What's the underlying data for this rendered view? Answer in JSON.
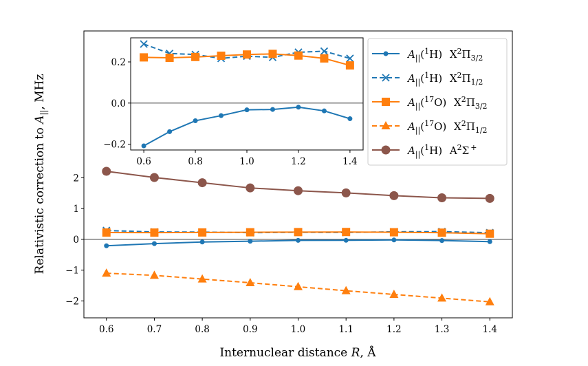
{
  "chart_data": [
    {
      "type": "line",
      "role": "main",
      "xlabel": {
        "text": "Internuclear distance ",
        "var": "R",
        "unit": ", Å"
      },
      "ylabel": {
        "text": "Relativistic correction to ",
        "var": "A",
        "sub": "||",
        "unit": ", MHz"
      },
      "xlim": [
        0.553,
        1.447
      ],
      "ylim": [
        -2.55,
        6.77
      ],
      "xticks": [
        "0.6",
        "0.7",
        "0.8",
        "0.9",
        "1.0",
        "1.1",
        "1.2",
        "1.3",
        "1.4"
      ],
      "yticks": [
        "−2",
        "−1",
        "0",
        "1",
        "2"
      ],
      "ytick_values": [
        -2,
        -1,
        0,
        1,
        2
      ],
      "zero_line": true,
      "x": [
        0.6,
        0.7,
        0.8,
        0.9,
        1.0,
        1.1,
        1.2,
        1.3,
        1.4
      ],
      "series": [
        {
          "name": "A||(1H) X2Π3/2",
          "color": "#1f77b4",
          "style": "solid",
          "marker": "dot",
          "values": [
            -0.208,
            -0.139,
            -0.086,
            -0.061,
            -0.033,
            -0.031,
            -0.02,
            -0.038,
            -0.076
          ]
        },
        {
          "name": "A||(1H) X2Π1/2",
          "color": "#1f77b4",
          "style": "dashed",
          "marker": "x",
          "values": [
            0.287,
            0.241,
            0.236,
            0.217,
            0.228,
            0.222,
            0.247,
            0.252,
            0.217
          ]
        },
        {
          "name": "A||(17O) X2Π3/2",
          "color": "#ff7f0e",
          "style": "solid",
          "marker": "square",
          "values": [
            0.222,
            0.22,
            0.224,
            0.23,
            0.236,
            0.239,
            0.231,
            0.217,
            0.183
          ]
        },
        {
          "name": "A||(17O) X2Π1/2",
          "color": "#ff7f0e",
          "style": "dashed",
          "marker": "triangle",
          "values": [
            -1.1,
            -1.17,
            -1.29,
            -1.41,
            -1.54,
            -1.67,
            -1.79,
            -1.91,
            -2.03
          ]
        },
        {
          "name": "A||(1H) A2Σ+",
          "color": "#8c564b",
          "style": "solid",
          "marker": "circle",
          "values": [
            2.21,
            2.01,
            1.84,
            1.67,
            1.58,
            1.51,
            1.42,
            1.35,
            1.33
          ]
        }
      ],
      "legend": {
        "placement": "upper-right",
        "entries": [
          {
            "symbol": "A",
            "sub": "||",
            "iso": "1",
            "nuc": "H",
            "state": "X",
            "mult": "2",
            "term": "Π",
            "tsub": "3/2",
            "tsup": ""
          },
          {
            "symbol": "A",
            "sub": "||",
            "iso": "1",
            "nuc": "H",
            "state": "X",
            "mult": "2",
            "term": "Π",
            "tsub": "1/2",
            "tsup": ""
          },
          {
            "symbol": "A",
            "sub": "||",
            "iso": "17",
            "nuc": "O",
            "state": "X",
            "mult": "2",
            "term": "Π",
            "tsub": "3/2",
            "tsup": ""
          },
          {
            "symbol": "A",
            "sub": "||",
            "iso": "17",
            "nuc": "O",
            "state": "X",
            "mult": "2",
            "term": "Π",
            "tsub": "1/2",
            "tsup": ""
          },
          {
            "symbol": "A",
            "sub": "||",
            "iso": "1",
            "nuc": "H",
            "state": "A",
            "mult": "2",
            "term": "Σ",
            "tsub": "",
            "tsup": "+"
          }
        ]
      }
    },
    {
      "type": "line",
      "role": "inset",
      "xlim": [
        0.549,
        1.451
      ],
      "ylim": [
        -0.228,
        0.317
      ],
      "xticks": [
        "0.6",
        "0.8",
        "1.0",
        "1.2",
        "1.4"
      ],
      "xtick_values": [
        0.6,
        0.8,
        1.0,
        1.2,
        1.4
      ],
      "yticks": [
        "−0.2",
        "0.0",
        "0.2"
      ],
      "ytick_values": [
        -0.2,
        0,
        0.2
      ],
      "zero_line": true,
      "series_shown": [
        0,
        1,
        2
      ]
    }
  ]
}
